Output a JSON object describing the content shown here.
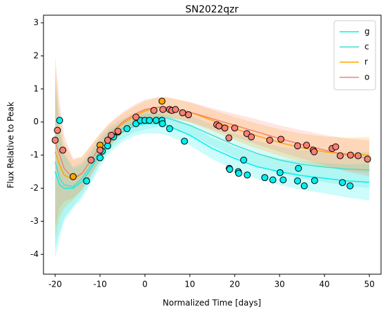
{
  "chart_data": {
    "type": "line",
    "title": "SN2022qzr",
    "x_label": "Normalized Time [days]",
    "y_label": "Flux Relative to Peak",
    "xlim": [
      -22.6,
      52.6
    ],
    "ylim": [
      -4.6,
      3.23
    ],
    "xticks": [
      -20,
      -10,
      0,
      10,
      20,
      30,
      40,
      50
    ],
    "yticks": [
      -4,
      -3,
      -2,
      -1,
      0,
      1,
      2,
      3
    ],
    "legend_position": "upper right",
    "x": [
      -20,
      -19,
      -18,
      -16,
      -14,
      -12,
      -10,
      -8,
      -5,
      -2,
      0,
      3,
      5,
      10,
      15,
      20,
      25,
      30,
      35,
      40,
      45,
      50
    ],
    "series": [
      {
        "name": "g",
        "color": "#00f0f0",
        "values": [
          -1.5,
          -1.9,
          -2.0,
          -2.0,
          -1.8,
          -1.4,
          -0.95,
          -0.6,
          -0.3,
          -0.1,
          -0.05,
          -0.05,
          -0.1,
          -0.4,
          -0.8,
          -1.1,
          -1.35,
          -1.5,
          -1.62,
          -1.7,
          -1.78,
          -1.82
        ],
        "lower": [
          -4.1,
          -3.5,
          -3.0,
          -2.6,
          -2.3,
          -1.85,
          -1.35,
          -0.95,
          -0.6,
          -0.4,
          -0.35,
          -0.35,
          -0.4,
          -0.7,
          -1.12,
          -1.45,
          -1.73,
          -1.9,
          -2.05,
          -2.16,
          -2.28,
          -2.37
        ],
        "upper": [
          1.1,
          -0.3,
          -1.0,
          -1.4,
          -1.3,
          -0.95,
          -0.55,
          -0.25,
          0.0,
          0.2,
          0.25,
          0.25,
          0.2,
          -0.1,
          -0.48,
          -0.75,
          -0.97,
          -1.1,
          -1.19,
          -1.24,
          -1.28,
          -1.27
        ],
        "points": {
          "x": [
            -19,
            -13,
            -10,
            -9.5,
            -8.3,
            -7,
            -6,
            -4,
            -2,
            -1,
            0,
            1,
            2.5,
            3.8,
            3.9,
            5.5,
            8.8,
            18.8,
            18.9,
            20.8,
            20.9,
            22,
            22.8,
            26.7,
            28.5,
            30.1,
            30.8,
            34,
            34.2,
            35.5,
            37.8,
            44,
            45.7
          ],
          "y": [
            0.05,
            -1.78,
            -1.08,
            -0.88,
            -0.72,
            -0.45,
            -0.3,
            -0.2,
            -0.05,
            0.05,
            0.05,
            0.05,
            0.05,
            0.05,
            -0.05,
            -0.2,
            -0.58,
            -1.4,
            -1.43,
            -1.5,
            -1.55,
            -1.15,
            -1.6,
            -1.68,
            -1.75,
            -1.53,
            -1.75,
            -1.78,
            -1.4,
            -1.93,
            -1.77,
            -1.83,
            -1.93
          ]
        }
      },
      {
        "name": "c",
        "color": "#40e0d0",
        "values": [
          -1.2,
          -1.7,
          -1.9,
          -1.95,
          -1.7,
          -1.3,
          -0.85,
          -0.5,
          -0.2,
          0.0,
          0.08,
          0.15,
          0.12,
          -0.1,
          -0.4,
          -0.7,
          -0.95,
          -1.15,
          -1.28,
          -1.36,
          -1.42,
          -1.45
        ],
        "lower": [
          -3.8,
          -3.3,
          -2.9,
          -2.55,
          -2.2,
          -1.75,
          -1.25,
          -0.85,
          -0.5,
          -0.3,
          -0.22,
          -0.15,
          -0.18,
          -0.4,
          -0.72,
          -1.05,
          -1.33,
          -1.55,
          -1.71,
          -1.82,
          -1.92,
          -2.0
        ],
        "upper": [
          1.4,
          -0.1,
          -0.9,
          -1.35,
          -1.2,
          -0.85,
          -0.45,
          -0.15,
          0.1,
          0.3,
          0.38,
          0.45,
          0.42,
          0.2,
          -0.08,
          -0.35,
          -0.57,
          -0.75,
          -0.85,
          -0.9,
          -0.92,
          -0.9
        ]
      },
      {
        "name": "r",
        "color": "#ffa500",
        "values": [
          -0.9,
          -1.3,
          -1.6,
          -1.75,
          -1.55,
          -1.15,
          -0.75,
          -0.4,
          -0.05,
          0.2,
          0.33,
          0.45,
          0.45,
          0.3,
          0.05,
          -0.2,
          -0.42,
          -0.62,
          -0.78,
          -0.9,
          -0.97,
          -1.0
        ],
        "lower": [
          -3.5,
          -2.9,
          -2.6,
          -2.35,
          -2.05,
          -1.6,
          -1.15,
          -0.75,
          -0.35,
          -0.1,
          0.03,
          0.15,
          0.15,
          0.0,
          -0.27,
          -0.55,
          -0.8,
          -1.02,
          -1.21,
          -1.36,
          -1.47,
          -1.55
        ],
        "upper": [
          1.7,
          0.3,
          -0.6,
          -1.15,
          -1.05,
          -0.7,
          -0.35,
          -0.05,
          0.25,
          0.5,
          0.63,
          0.75,
          0.75,
          0.6,
          0.37,
          0.15,
          -0.04,
          -0.22,
          -0.35,
          -0.44,
          -0.47,
          -0.45
        ],
        "points": {
          "x": [
            -16,
            -10,
            3.8
          ],
          "y": [
            -1.65,
            -0.7,
            0.63
          ]
        }
      },
      {
        "name": "o",
        "color": "#fa8072",
        "values": [
          -0.6,
          -1.0,
          -1.4,
          -1.7,
          -1.55,
          -1.15,
          -0.75,
          -0.4,
          0.0,
          0.25,
          0.38,
          0.45,
          0.45,
          0.3,
          0.1,
          -0.1,
          -0.3,
          -0.5,
          -0.68,
          -0.85,
          -1.0,
          -1.1
        ],
        "lower": [
          -3.2,
          -2.6,
          -2.4,
          -2.3,
          -2.05,
          -1.6,
          -1.15,
          -0.75,
          -0.3,
          -0.05,
          0.08,
          0.15,
          0.15,
          0.0,
          -0.22,
          -0.45,
          -0.68,
          -0.9,
          -1.11,
          -1.31,
          -1.5,
          -1.65
        ],
        "upper": [
          2.0,
          0.6,
          -0.4,
          -1.1,
          -1.05,
          -0.7,
          -0.35,
          -0.05,
          0.3,
          0.55,
          0.68,
          0.75,
          0.75,
          0.6,
          0.42,
          0.25,
          0.08,
          -0.1,
          -0.25,
          -0.39,
          -0.5,
          -0.55
        ],
        "points": {
          "x": [
            -20,
            -19.5,
            -18.3,
            -12,
            -10,
            -8.3,
            -7.5,
            -6,
            -2,
            2,
            4,
            5.5,
            6,
            6.8,
            8.4,
            9.7,
            16,
            16.5,
            17.8,
            18.7,
            20,
            22.7,
            23.7,
            27.8,
            30.3,
            34,
            36,
            37.5,
            37.7,
            41.7,
            42.5,
            43.5,
            45.8,
            47.5,
            49.6
          ],
          "y": [
            -0.55,
            -0.25,
            -0.85,
            -1.15,
            -0.85,
            -0.55,
            -0.4,
            -0.28,
            0.15,
            0.35,
            0.38,
            0.38,
            0.35,
            0.38,
            0.28,
            0.22,
            -0.08,
            -0.12,
            -0.18,
            -0.48,
            -0.18,
            -0.35,
            -0.45,
            -0.55,
            -0.52,
            -0.72,
            -0.7,
            -0.85,
            -0.9,
            -0.8,
            -0.75,
            -1.02,
            -1.0,
            -1.02,
            -1.12
          ]
        }
      }
    ]
  }
}
